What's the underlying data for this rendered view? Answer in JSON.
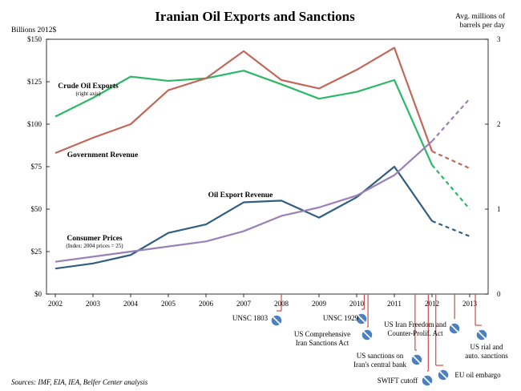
{
  "chart_data": {
    "type": "line",
    "title": "Iranian Oil Exports and Sanctions",
    "ylabel_left": "Billions 2012$",
    "ylabel_right": "Avg. millions of barrels per day",
    "x": [
      "2002",
      "2003",
      "2004",
      "2005",
      "2006",
      "2007",
      "2008",
      "2009",
      "2010",
      "2011",
      "2012",
      "2013"
    ],
    "ylim_left": [
      0,
      150
    ],
    "ylim_right": [
      0,
      3
    ],
    "left_ticks": [
      "$0",
      "$25",
      "$50",
      "$75",
      "$100",
      "$125",
      "$150"
    ],
    "right_ticks": [
      "0",
      "1",
      "2",
      "3"
    ],
    "series": [
      {
        "name": "Crude Oil Exports",
        "sub": "(right axis)",
        "axis": "right",
        "color": "#2db865",
        "values": [
          2.09,
          2.31,
          2.56,
          2.51,
          2.54,
          2.63,
          2.47,
          2.3,
          2.38,
          2.52,
          1.52,
          1.0
        ],
        "projected_from": "2012"
      },
      {
        "name": "Government  Revenue",
        "sub": "",
        "axis": "left",
        "color": "#c0685a",
        "values": [
          83,
          92,
          100,
          120,
          127,
          143,
          126,
          121,
          132,
          145,
          84,
          74
        ],
        "projected_from": "2012"
      },
      {
        "name": "Oil Export  Revenue",
        "sub": "",
        "axis": "left",
        "color": "#335e80",
        "values": [
          15,
          18,
          23,
          36,
          41,
          54,
          55,
          45,
          57,
          75,
          43,
          34
        ],
        "projected_from": "2012"
      },
      {
        "name": "Consumer Prices",
        "sub": "(Index: 2004 prices = 25)",
        "axis": "left",
        "color": "#9a80b8",
        "values": [
          19,
          22,
          25,
          28,
          31,
          37,
          46,
          51,
          58,
          70,
          90,
          115
        ],
        "projected_from": "2012"
      }
    ],
    "annotations": [
      {
        "label": [
          "UNSC 1803"
        ],
        "year": 2008.0
      },
      {
        "label": [
          "UNSC 1929"
        ],
        "year": 2010.2
      },
      {
        "label": [
          "US Comprehensive",
          "Iran Sanctions Act"
        ],
        "year": 2010.3
      },
      {
        "label": [
          "US sanctions on",
          "Iran's central bank"
        ],
        "year": 2011.55
      },
      {
        "label": [
          "SWIFT cutoff"
        ],
        "year": 2011.9
      },
      {
        "label": [
          "EU oil embargo"
        ],
        "year": 2012.1
      },
      {
        "label": [
          "US Iran Freedom and",
          "Counter-Prolif. Act"
        ],
        "year": 2012.6
      },
      {
        "label": [
          "US rial and",
          "auto. sanctions"
        ],
        "year": 2013.15
      }
    ],
    "source": "Sources: IMF, EIA, IEA, Belfer Center analysis"
  }
}
